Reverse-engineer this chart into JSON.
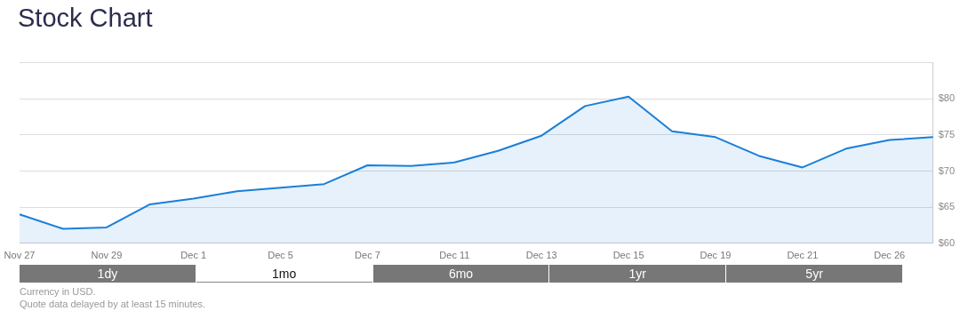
{
  "chart_data": {
    "type": "area",
    "title": "Stock Chart",
    "categories": [
      "Nov 27",
      null,
      "Nov 29",
      null,
      "Dec 1",
      null,
      "Dec 5",
      null,
      "Dec 7",
      null,
      "Dec 11",
      null,
      "Dec 13",
      null,
      "Dec 15",
      null,
      "Dec 19",
      null,
      "Dec 21",
      null,
      "Dec 26",
      null
    ],
    "series": [
      {
        "color": "#1a7fd9",
        "values": [
          64.0,
          62.0,
          62.2,
          65.4,
          66.2,
          67.2,
          67.7,
          68.2,
          70.8,
          70.7,
          71.2,
          72.8,
          74.9,
          79.0,
          80.3,
          75.5,
          74.7,
          72.1,
          70.5,
          73.1,
          74.3,
          74.7
        ]
      }
    ],
    "ylim": [
      60,
      85
    ],
    "yticks": [
      {
        "value": 60,
        "label": "$60"
      },
      {
        "value": 65,
        "label": "$65"
      },
      {
        "value": 70,
        "label": "$70"
      },
      {
        "value": 75,
        "label": "$75"
      },
      {
        "value": 80,
        "label": "$80"
      },
      {
        "value": 85,
        "label": null
      }
    ],
    "grid": "y",
    "legend": false,
    "annotations": [
      "1dy",
      "1mo",
      "6mo",
      "1yr",
      "5yr",
      "Currency in USD.",
      "Quote data delayed by at least 15 minutes."
    ]
  }
}
